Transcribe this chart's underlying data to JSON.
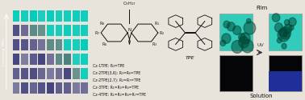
{
  "bg_color": "#e8e4dc",
  "left_panel": {
    "bg": "#06060f",
    "n_rows": 6,
    "n_cols": 9,
    "label": "Increasing TPEs",
    "rows": [
      {
        "n_cyan": 0,
        "n_mid": 0
      },
      {
        "n_cyan": 1,
        "n_mid": 1
      },
      {
        "n_cyan": 2,
        "n_mid": 2
      },
      {
        "n_cyan": 3,
        "n_mid": 2
      },
      {
        "n_cyan": 5,
        "n_mid": 2
      },
      {
        "n_cyan": 9,
        "n_mid": 0
      }
    ],
    "blue_color": "#1a1a66",
    "mid_color": "#226666",
    "cyan_color": "#00ccbb"
  },
  "middle_panel": {
    "bg": "#e8e4dc",
    "compound_lines": [
      "Cz-1TPE: R₃=TPE",
      "Cz-2TPE(3,6): R₃=R₆=TPE",
      "Cz-2TPE(2,7): R₂=R₇=TPE",
      "Cz-3TPE: R₁=R₃=R₆=TPE",
      "Cz-4TPE: R₁=R₃=R₆=R₇=TPE"
    ],
    "struct_color": "#111111",
    "tpe_label": "TPE"
  },
  "right_panel": {
    "bg": "#e8e4dc",
    "film_label": "Film",
    "solution_label": "Solution",
    "uv_label": "UV",
    "film_color": "#33ccbb",
    "solution_after_color": "#2233aa",
    "solution_bg": "#050508",
    "border_color": "#999999"
  }
}
